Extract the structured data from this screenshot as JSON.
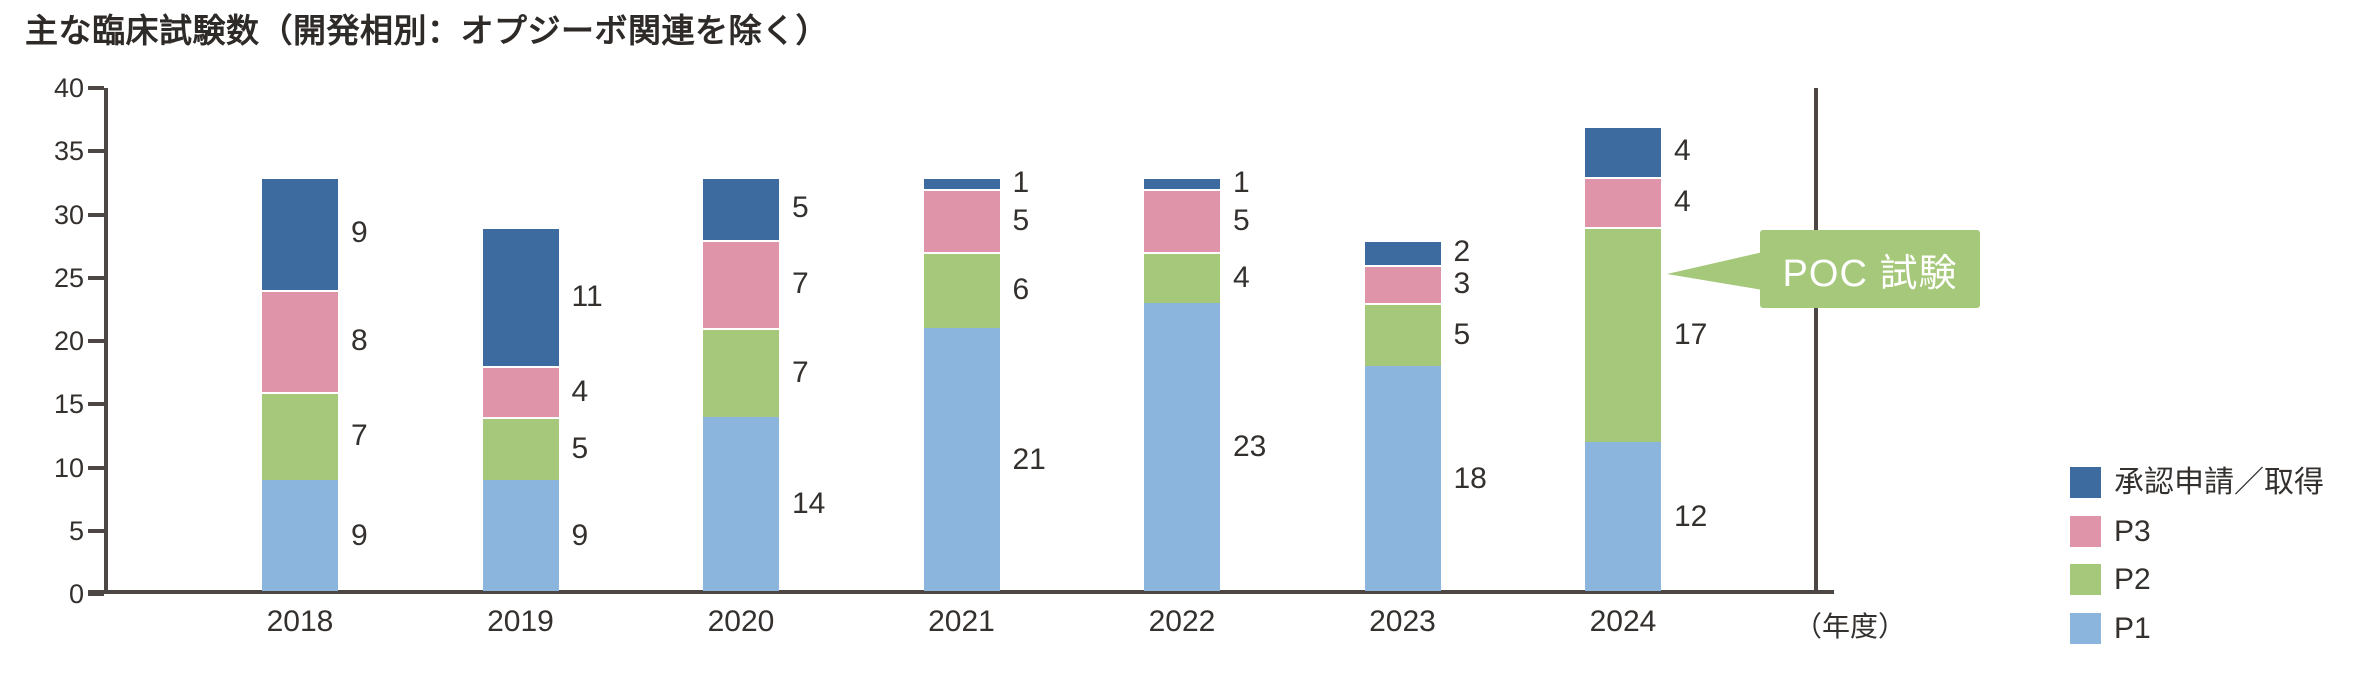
{
  "title": "主な臨床試験数（開発相別：オプジーボ関連を除く）",
  "axis_unit_label": "（年度）",
  "annotation": {
    "label": "POC 試験"
  },
  "legend": {
    "items": [
      {
        "label": "承認申請／取得",
        "color": "#3D6B9F"
      },
      {
        "label": "P3",
        "color": "#E094AA"
      },
      {
        "label": "P2",
        "color": "#A5C87A"
      },
      {
        "label": "P1",
        "color": "#8BB5DC"
      }
    ]
  },
  "chart_data": {
    "type": "bar",
    "stacked": true,
    "title": "主な臨床試験数（開発相別：オプジーボ関連を除く）",
    "categories": [
      "2018",
      "2019",
      "2020",
      "2021",
      "2022",
      "2023",
      "2024"
    ],
    "series": [
      {
        "name": "P1",
        "color": "#8BB5DC",
        "values": [
          9,
          9,
          14,
          21,
          23,
          18,
          12
        ]
      },
      {
        "name": "P2",
        "color": "#A5C87A",
        "values": [
          7,
          5,
          7,
          6,
          4,
          5,
          17
        ]
      },
      {
        "name": "P3",
        "color": "#E094AA",
        "values": [
          8,
          4,
          7,
          5,
          5,
          3,
          4
        ]
      },
      {
        "name": "承認申請／取得",
        "color": "#3D6B9F",
        "values": [
          9,
          11,
          5,
          1,
          1,
          2,
          4
        ]
      }
    ],
    "totals": [
      33,
      29,
      33,
      33,
      33,
      28,
      37
    ],
    "ylim": [
      0,
      40
    ],
    "yticks": [
      0,
      5,
      10,
      15,
      20,
      25,
      30,
      35,
      40
    ],
    "xlabel": "（年度）",
    "grid": false,
    "legend_position": "right",
    "legend_order": [
      "承認申請／取得",
      "P3",
      "P2",
      "P1"
    ],
    "annotation": {
      "text": "POC 試験",
      "target_category": "2024",
      "target_series": "P2"
    }
  }
}
